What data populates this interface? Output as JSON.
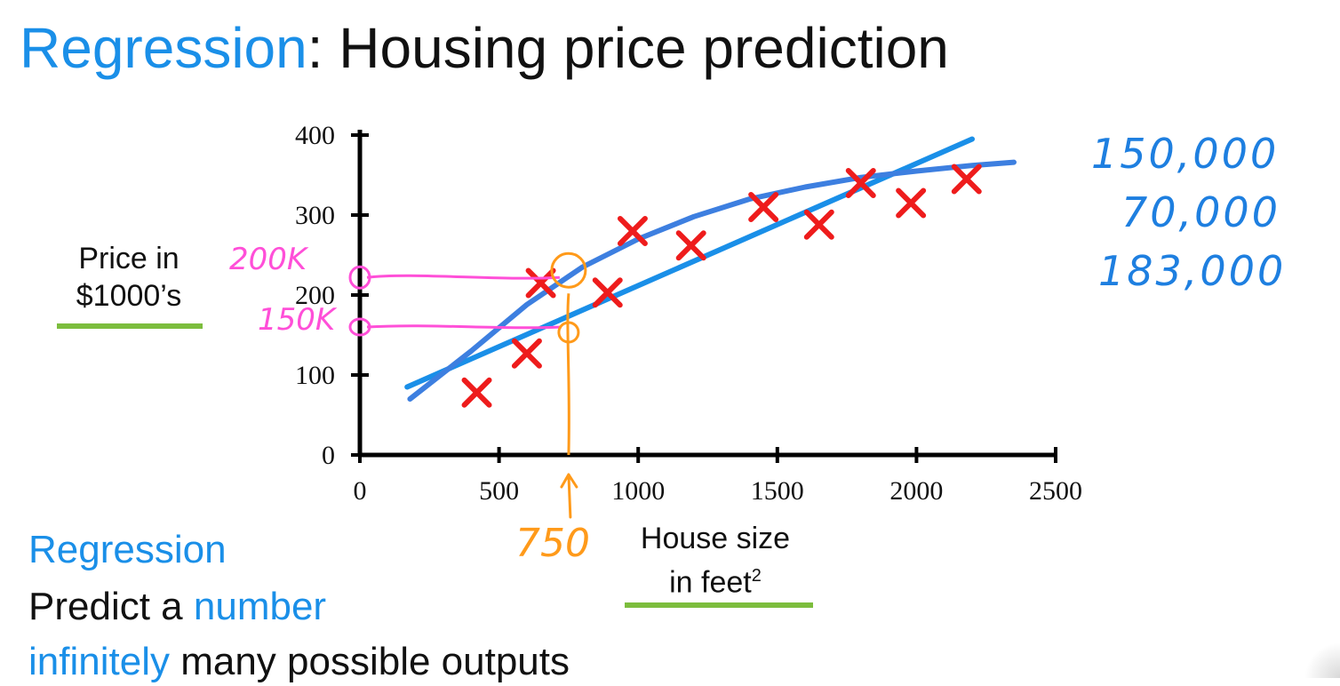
{
  "slide": {
    "title_accent": "Regression",
    "title_rest": ": Housing price prediction",
    "ylabel_line1": "Price in",
    "ylabel_line2": "$1000’s",
    "xlabel_line1": "House size",
    "xlabel_line2": "in feet",
    "xlabel_sup": "2",
    "bottom_heading": "Regression",
    "bottom_line2_a": "Predict a ",
    "bottom_line2_b": "number",
    "bottom_line3_a": "infinitely",
    "bottom_line3_b": " many possible outputs"
  },
  "annotations": {
    "right_notes": [
      "150,000",
      "70,000",
      "183,000"
    ],
    "pink_200k": "200K",
    "pink_150k": "150K",
    "orange_750": "750"
  },
  "colors": {
    "accent_blue": "#1a8fe8",
    "marker_red": "#ee1c1c",
    "fit_line": "#1a8fe8",
    "fit_curve": "#3d7fe0",
    "handwriting_pink": "#ff4fd8",
    "handwriting_orange": "#ff9a1a",
    "handwriting_blue": "#1e7fe0",
    "underline_green": "#7cbd3d"
  },
  "chart_data": {
    "type": "scatter",
    "title": "",
    "xlabel": "House size in feet²",
    "ylabel": "Price in $1000’s",
    "xlim": [
      0,
      2500
    ],
    "ylim": [
      0,
      400
    ],
    "x_ticks": [
      0,
      500,
      1000,
      1500,
      2000,
      2500
    ],
    "y_ticks": [
      0,
      100,
      200,
      300,
      400
    ],
    "grid": false,
    "marker": "x",
    "points": [
      {
        "x": 420,
        "y": 78
      },
      {
        "x": 600,
        "y": 127
      },
      {
        "x": 650,
        "y": 215
      },
      {
        "x": 890,
        "y": 203
      },
      {
        "x": 980,
        "y": 280
      },
      {
        "x": 1190,
        "y": 262
      },
      {
        "x": 1450,
        "y": 310
      },
      {
        "x": 1650,
        "y": 288
      },
      {
        "x": 1800,
        "y": 340
      },
      {
        "x": 1980,
        "y": 315
      },
      {
        "x": 2180,
        "y": 345
      }
    ],
    "fits": [
      {
        "kind": "straight-line",
        "points": [
          {
            "x": 170,
            "y": 85
          },
          {
            "x": 2200,
            "y": 395
          }
        ]
      },
      {
        "kind": "curve",
        "points": [
          {
            "x": 180,
            "y": 70
          },
          {
            "x": 400,
            "y": 130
          },
          {
            "x": 600,
            "y": 188
          },
          {
            "x": 800,
            "y": 235
          },
          {
            "x": 1000,
            "y": 270
          },
          {
            "x": 1200,
            "y": 298
          },
          {
            "x": 1400,
            "y": 320
          },
          {
            "x": 1600,
            "y": 335
          },
          {
            "x": 1800,
            "y": 347
          },
          {
            "x": 2000,
            "y": 355
          },
          {
            "x": 2200,
            "y": 362
          },
          {
            "x": 2350,
            "y": 366
          }
        ]
      }
    ],
    "highlight_x": 750,
    "highlight_y": [
      160,
      222
    ]
  }
}
